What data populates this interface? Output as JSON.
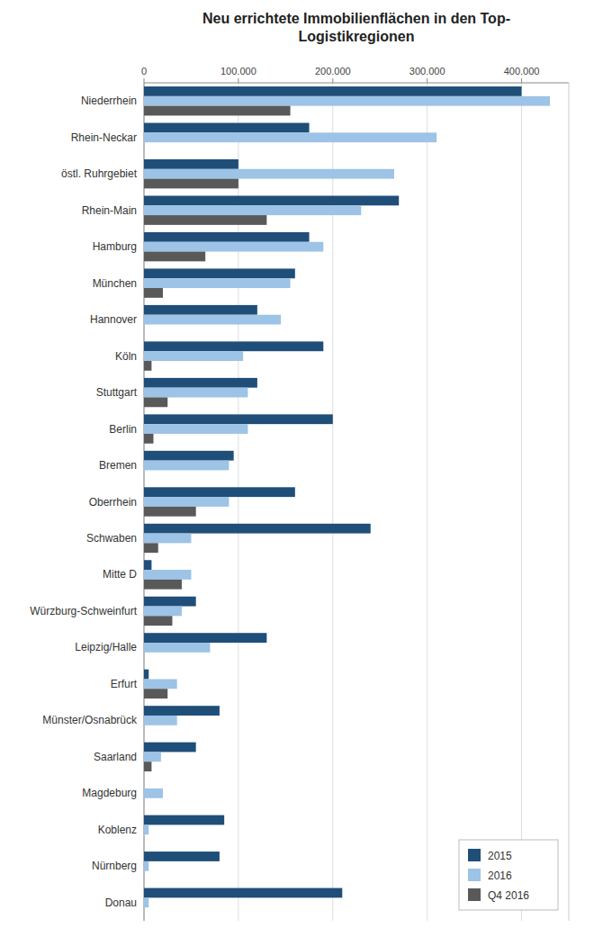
{
  "chart_data": {
    "type": "bar",
    "orientation": "horizontal",
    "title": "Neu errichtete Immobilienflächen in den Top-\nLogistikregionen",
    "categories": [
      "Niederrhein",
      "Rhein-Neckar",
      "östl. Ruhrgebiet",
      "Rhein-Main",
      "Hamburg",
      "München",
      "Hannover",
      "Köln",
      "Stuttgart",
      "Berlin",
      "Bremen",
      "Oberrhein",
      "Schwaben",
      "Mitte D",
      "Würzburg-Schweinfurt",
      "Leipzig/Halle",
      "Erfurt",
      "Münster/Osnabrück",
      "Saarland",
      "Magdeburg",
      "Koblenz",
      "Nürnberg",
      "Donau"
    ],
    "series": [
      {
        "name": "2015",
        "color": "#1f4e79",
        "values": [
          400000,
          175000,
          100000,
          270000,
          175000,
          160000,
          120000,
          190000,
          120000,
          200000,
          95000,
          160000,
          240000,
          8000,
          55000,
          130000,
          5000,
          80000,
          55000,
          0,
          85000,
          80000,
          210000
        ]
      },
      {
        "name": "2016",
        "color": "#9dc3e6",
        "values": [
          430000,
          310000,
          265000,
          230000,
          190000,
          155000,
          145000,
          105000,
          110000,
          110000,
          90000,
          90000,
          50000,
          50000,
          40000,
          70000,
          35000,
          35000,
          18000,
          20000,
          5000,
          5000,
          5000
        ]
      },
      {
        "name": "Q4 2016",
        "color": "#595959",
        "values": [
          155000,
          0,
          100000,
          130000,
          65000,
          20000,
          0,
          8000,
          25000,
          10000,
          0,
          55000,
          15000,
          40000,
          30000,
          0,
          25000,
          0,
          8000,
          0,
          0,
          0,
          0
        ]
      }
    ],
    "xlim": [
      0,
      450000
    ],
    "xticks": [
      0,
      {
        "value": 100000,
        "label": "100.000"
      },
      {
        "value": 200000,
        "label": "200.000"
      },
      {
        "value": 300000,
        "label": "300.000"
      },
      {
        "value": 400000,
        "label": "400.000"
      }
    ],
    "grid": true,
    "legend": "lower right"
  }
}
